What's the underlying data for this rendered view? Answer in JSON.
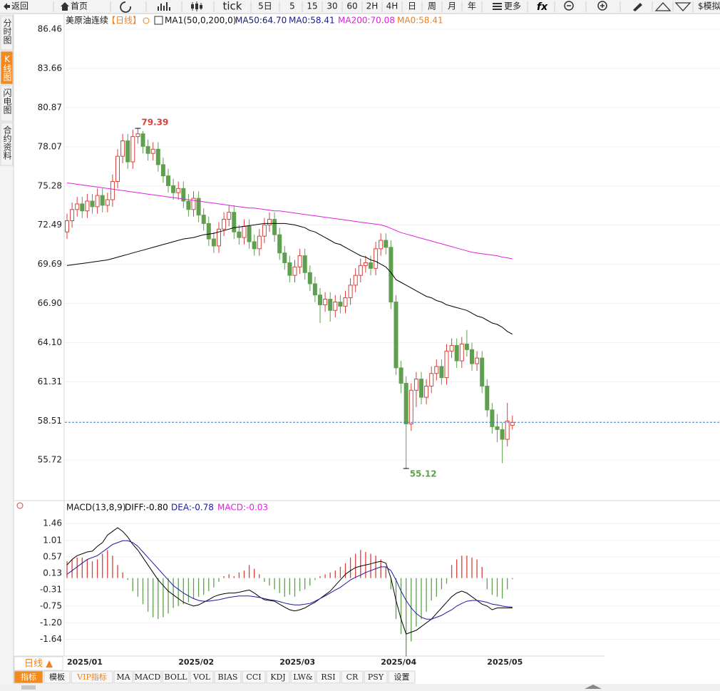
{
  "toolbar": {
    "items": [
      "返回",
      "首页",
      "tick",
      "5日",
      "5",
      "15",
      "30",
      "60",
      "2H",
      "4H",
      "日",
      "周",
      "月",
      "年",
      "更多",
      "$模拟"
    ]
  },
  "sidebar": [
    "分时图",
    "K线图",
    "闪电图",
    "合约资料"
  ],
  "bottom_bar": {
    "period": "日线 ▲",
    "tabs": [
      "指标",
      "模板",
      "VIP指标",
      "MA",
      "MACD",
      "BOLL",
      "VOL",
      "BIAS",
      "CCI",
      "KDJ",
      "LW&",
      "RSI",
      "CR",
      "PSY",
      "设置"
    ]
  },
  "chart_data": [
    {
      "type": "candlestick",
      "title": "美原油连续",
      "period": "【日线】",
      "indicator": "MA1(50,0,200,0)",
      "categories": [
        "2025/01",
        null,
        null,
        null,
        null,
        null,
        null,
        null,
        null,
        null,
        null,
        null,
        null,
        null,
        null,
        null,
        null,
        null,
        null,
        null,
        null,
        null,
        "2025/02",
        null,
        null,
        null,
        null,
        null,
        null,
        null,
        null,
        null,
        null,
        null,
        null,
        null,
        null,
        null,
        null,
        null,
        null,
        null,
        "2025/03",
        null,
        null,
        null,
        null,
        null,
        null,
        null,
        null,
        null,
        null,
        null,
        null,
        null,
        null,
        null,
        null,
        null,
        null,
        null,
        "2025/04",
        null,
        null,
        null,
        null,
        null,
        null,
        null,
        null,
        null,
        null,
        null,
        null,
        null,
        null,
        null,
        null,
        null,
        null,
        null,
        null,
        "2025/05",
        null,
        null,
        null,
        null,
        null
      ],
      "open": [
        72.0,
        72.8,
        73.6,
        74.0,
        73.5,
        74.2,
        73.8,
        74.6,
        73.9,
        74.3,
        75.6,
        77.4,
        78.5,
        77.0,
        78.8,
        79.0,
        78.1,
        77.6,
        77.9,
        76.8,
        76.0,
        75.3,
        74.8,
        75.1,
        74.2,
        73.6,
        74.4,
        73.2,
        72.6,
        71.5,
        71.0,
        72.2,
        72.9,
        73.4,
        72.0,
        71.6,
        72.4,
        71.3,
        70.8,
        71.7,
        72.5,
        72.9,
        71.8,
        70.5,
        69.8,
        68.9,
        69.5,
        70.3,
        69.1,
        68.3,
        67.5,
        66.8,
        67.2,
        66.4,
        67.0,
        66.7,
        67.3,
        68.2,
        68.9,
        69.6,
        69.8,
        69.4,
        70.8,
        71.4,
        70.9,
        67.0,
        62.3,
        61.2,
        58.3,
        60.7,
        61.5,
        60.2,
        61.0,
        61.9,
        62.4,
        61.6,
        63.5,
        63.9,
        62.8,
        64.0,
        63.6,
        62.6,
        63.0,
        61.0,
        59.3,
        58.1,
        57.9,
        57.2,
        58.2
      ],
      "high": [
        73.3,
        74.1,
        74.5,
        74.5,
        74.7,
        74.7,
        75.1,
        75.1,
        74.8,
        76.1,
        77.9,
        79.0,
        79.0,
        79.3,
        79.39,
        79.2,
        78.6,
        78.4,
        78.4,
        77.3,
        76.5,
        75.8,
        75.6,
        75.6,
        74.7,
        74.9,
        74.9,
        73.7,
        73.1,
        72.0,
        72.7,
        73.4,
        73.9,
        73.9,
        72.5,
        72.9,
        72.9,
        71.8,
        72.2,
        73.0,
        73.4,
        73.4,
        72.3,
        71.0,
        70.3,
        70.0,
        70.8,
        70.8,
        69.6,
        68.8,
        68.0,
        67.7,
        67.7,
        67.5,
        67.5,
        67.8,
        68.7,
        69.4,
        70.1,
        70.3,
        70.3,
        71.3,
        71.9,
        71.9,
        71.4,
        67.5,
        62.8,
        61.7,
        61.2,
        62.0,
        62.0,
        61.5,
        62.4,
        62.9,
        62.9,
        64.0,
        64.4,
        64.4,
        64.5,
        65.0,
        64.1,
        63.5,
        63.5,
        61.5,
        59.8,
        59.0,
        58.4,
        59.8,
        58.9
      ],
      "low": [
        71.5,
        72.3,
        73.1,
        73.0,
        73.0,
        73.3,
        73.3,
        73.4,
        73.4,
        73.8,
        75.1,
        76.9,
        76.5,
        76.5,
        78.3,
        77.6,
        77.1,
        77.1,
        76.3,
        75.5,
        74.8,
        74.3,
        74.3,
        73.7,
        73.1,
        73.1,
        72.7,
        72.1,
        71.0,
        70.5,
        70.5,
        71.7,
        72.4,
        71.5,
        71.1,
        71.1,
        70.8,
        70.3,
        70.3,
        71.2,
        72.0,
        71.3,
        70.0,
        69.3,
        68.4,
        68.4,
        69.0,
        68.6,
        67.8,
        67.0,
        65.5,
        66.3,
        65.6,
        65.9,
        66.2,
        66.2,
        66.8,
        67.7,
        68.4,
        69.1,
        68.9,
        68.9,
        70.3,
        70.4,
        66.5,
        61.8,
        60.5,
        55.12,
        57.8,
        59.5,
        59.7,
        59.7,
        60.5,
        61.4,
        61.1,
        61.1,
        63.0,
        62.3,
        62.3,
        63.1,
        62.1,
        62.1,
        60.5,
        58.8,
        57.6,
        57.0,
        55.5,
        56.7,
        57.9
      ],
      "close": [
        72.8,
        73.6,
        74.0,
        73.5,
        74.2,
        73.8,
        74.6,
        73.9,
        74.3,
        75.6,
        77.4,
        78.5,
        77.0,
        78.8,
        79.0,
        78.1,
        77.6,
        77.9,
        76.8,
        76.0,
        75.3,
        74.8,
        75.1,
        74.2,
        73.6,
        74.4,
        73.2,
        72.6,
        71.5,
        71.0,
        72.2,
        72.9,
        73.4,
        72.0,
        71.6,
        72.4,
        71.3,
        70.8,
        71.7,
        72.5,
        72.9,
        71.8,
        70.5,
        69.8,
        68.9,
        69.5,
        70.3,
        69.1,
        68.3,
        67.5,
        66.8,
        67.2,
        66.4,
        67.0,
        66.7,
        67.3,
        68.2,
        68.9,
        69.6,
        69.8,
        69.4,
        70.8,
        71.4,
        70.9,
        67.0,
        62.3,
        61.2,
        58.3,
        60.7,
        61.5,
        60.2,
        61.0,
        61.9,
        62.4,
        61.6,
        63.5,
        63.9,
        62.8,
        64.0,
        63.6,
        62.6,
        63.0,
        61.0,
        59.3,
        58.1,
        57.9,
        57.2,
        58.5,
        58.41
      ],
      "up_color": "#d9403a",
      "down_color": "#5fa04e",
      "last_line_color": "#3a78c8",
      "series": [
        {
          "name": "MA50:64.70",
          "color": "#000000",
          "label_color": "#1a1a70",
          "values": [
            69.6,
            69.65,
            69.7,
            69.75,
            69.8,
            69.85,
            69.9,
            69.95,
            70.0,
            70.1,
            70.2,
            70.3,
            70.4,
            70.5,
            70.6,
            70.7,
            70.8,
            70.9,
            71.0,
            71.1,
            71.2,
            71.3,
            71.4,
            71.5,
            71.55,
            71.6,
            71.7,
            71.8,
            71.85,
            71.9,
            72.0,
            72.1,
            72.2,
            72.3,
            72.35,
            72.4,
            72.45,
            72.5,
            72.55,
            72.6,
            72.6,
            72.6,
            72.6,
            72.6,
            72.55,
            72.5,
            72.4,
            72.3,
            72.1,
            72.0,
            71.8,
            71.6,
            71.4,
            71.2,
            71.1,
            70.9,
            70.7,
            70.5,
            70.3,
            70.2,
            70.0,
            69.9,
            69.7,
            69.5,
            69.1,
            68.6,
            68.4,
            68.2,
            68.0,
            67.8,
            67.6,
            67.4,
            67.3,
            67.1,
            67.0,
            66.8,
            66.7,
            66.6,
            66.5,
            66.4,
            66.2,
            66.0,
            65.9,
            65.7,
            65.5,
            65.4,
            65.2,
            64.9,
            64.7
          ]
        },
        {
          "name": "MA200:70.08",
          "color": "#e020e0",
          "label_color": "#e020e0",
          "values": [
            75.5,
            75.45,
            75.4,
            75.35,
            75.3,
            75.25,
            75.2,
            75.15,
            75.1,
            75.05,
            75.0,
            74.95,
            74.9,
            74.85,
            74.8,
            74.75,
            74.7,
            74.65,
            74.6,
            74.55,
            74.5,
            74.45,
            74.4,
            74.35,
            74.3,
            74.25,
            74.2,
            74.15,
            74.1,
            74.05,
            74.0,
            73.95,
            73.9,
            73.85,
            73.8,
            73.75,
            73.7,
            73.7,
            73.65,
            73.6,
            73.55,
            73.5,
            73.5,
            73.45,
            73.4,
            73.35,
            73.3,
            73.25,
            73.2,
            73.15,
            73.1,
            73.05,
            73.0,
            72.95,
            72.9,
            72.85,
            72.8,
            72.75,
            72.7,
            72.65,
            72.6,
            72.55,
            72.5,
            72.4,
            72.25,
            72.1,
            71.95,
            71.85,
            71.75,
            71.65,
            71.55,
            71.45,
            71.35,
            71.25,
            71.15,
            71.05,
            70.95,
            70.85,
            70.75,
            70.65,
            70.55,
            70.5,
            70.45,
            70.4,
            70.35,
            70.3,
            70.2,
            70.15,
            70.08
          ]
        }
      ],
      "legend_extra": [
        {
          "name": "MA0:58.41",
          "color": "#1a1aa0"
        },
        {
          "name": "MA0:58.41",
          "color": "#f08020"
        }
      ],
      "ylim": [
        52.93,
        87.43
      ],
      "yticks": [
        86.46,
        83.66,
        80.87,
        78.07,
        75.28,
        72.49,
        69.69,
        {
          "value": 66.9,
          "label": "66.90"
        },
        {
          "value": 64.1,
          "label": "64.10"
        },
        61.31,
        58.51,
        55.72
      ],
      "grid": true
    },
    {
      "type": "macd",
      "title": "MACD(13,8,9)",
      "series": [
        {
          "name": "DIFF:-0.80",
          "color": "#000000",
          "label_color": "#000000",
          "values": [
            0.35,
            0.5,
            0.6,
            0.65,
            0.7,
            0.72,
            0.85,
            0.95,
            1.15,
            1.25,
            1.35,
            1.25,
            1.1,
            0.9,
            0.75,
            0.55,
            0.35,
            0.15,
            -0.05,
            -0.2,
            -0.35,
            -0.45,
            -0.55,
            -0.65,
            -0.7,
            -0.75,
            -0.72,
            -0.65,
            -0.58,
            -0.5,
            -0.45,
            -0.42,
            -0.4,
            -0.4,
            -0.38,
            -0.35,
            -0.32,
            -0.4,
            -0.5,
            -0.58,
            -0.6,
            -0.62,
            -0.7,
            -0.78,
            -0.85,
            -0.88,
            -0.85,
            -0.8,
            -0.72,
            -0.65,
            -0.55,
            -0.45,
            -0.35,
            -0.2,
            -0.05,
            0.1,
            0.2,
            0.28,
            0.32,
            0.35,
            0.38,
            0.42,
            0.45,
            0.4,
            0.0,
            -0.6,
            -1.1,
            -1.5,
            -1.45,
            -1.4,
            -1.3,
            -1.2,
            -1.1,
            -0.95,
            -0.8,
            -0.65,
            -0.5,
            -0.4,
            -0.35,
            -0.4,
            -0.5,
            -0.6,
            -0.7,
            -0.75,
            -0.85,
            -0.8,
            -0.8,
            -0.8,
            -0.8
          ]
        },
        {
          "name": "DEA:-0.78",
          "color": "#1a1aa0",
          "label_color": "#1a1aa0",
          "values": [
            0.1,
            0.2,
            0.3,
            0.4,
            0.5,
            0.55,
            0.6,
            0.7,
            0.8,
            0.9,
            0.95,
            1.0,
            1.0,
            0.95,
            0.85,
            0.7,
            0.55,
            0.4,
            0.25,
            0.1,
            -0.05,
            -0.2,
            -0.3,
            -0.4,
            -0.48,
            -0.55,
            -0.6,
            -0.62,
            -0.62,
            -0.6,
            -0.58,
            -0.55,
            -0.52,
            -0.5,
            -0.48,
            -0.48,
            -0.48,
            -0.5,
            -0.52,
            -0.55,
            -0.58,
            -0.6,
            -0.63,
            -0.67,
            -0.7,
            -0.72,
            -0.72,
            -0.7,
            -0.68,
            -0.62,
            -0.55,
            -0.48,
            -0.4,
            -0.32,
            -0.25,
            -0.15,
            -0.05,
            0.02,
            0.08,
            0.15,
            0.2,
            0.25,
            0.3,
            0.3,
            0.2,
            -0.05,
            -0.35,
            -0.6,
            -0.8,
            -0.95,
            -1.05,
            -1.1,
            -1.1,
            -1.05,
            -1.0,
            -0.92,
            -0.85,
            -0.75,
            -0.68,
            -0.62,
            -0.6,
            -0.6,
            -0.62,
            -0.65,
            -0.7,
            -0.72,
            -0.75,
            -0.77,
            -0.78
          ]
        }
      ],
      "histogram": {
        "name": "MACD:-0.03",
        "label_color": "#e020e0",
        "up_color": "#d9403a",
        "down_color": "#5fa04e",
        "values": [
          0.45,
          0.5,
          0.55,
          0.55,
          0.5,
          0.45,
          0.5,
          0.65,
          0.75,
          0.6,
          0.35,
          0.15,
          -0.05,
          -0.35,
          -0.5,
          -0.7,
          -0.9,
          -1.05,
          -1.1,
          -1.05,
          -0.95,
          -0.8,
          -0.75,
          -0.7,
          -0.65,
          -0.55,
          -0.5,
          -0.45,
          -0.35,
          -0.25,
          -0.1,
          0.05,
          0.1,
          0.05,
          0.15,
          0.2,
          0.35,
          0.25,
          0.1,
          -0.1,
          -0.2,
          -0.3,
          -0.4,
          -0.5,
          -0.45,
          -0.5,
          -0.35,
          -0.3,
          -0.2,
          -0.05,
          0.05,
          0.1,
          0.15,
          0.2,
          0.3,
          0.4,
          0.55,
          0.65,
          0.75,
          0.7,
          0.65,
          0.6,
          0.5,
          0.3,
          -0.3,
          -1.1,
          -1.5,
          -2.1,
          -1.7,
          -1.3,
          -1.1,
          -0.9,
          -0.6,
          -0.5,
          -0.3,
          -0.15,
          0.35,
          0.5,
          0.6,
          0.6,
          0.55,
          0.5,
          0.3,
          -0.3,
          -0.45,
          -0.5,
          -0.55,
          -0.3,
          -0.03
        ]
      },
      "ylim": [
        -2.09,
        1.77
      ],
      "yticks": [
        1.46,
        1.01,
        0.57,
        0.13,
        -0.31,
        -0.75,
        {
          "value": -1.2,
          "label": "-1.20"
        },
        -1.64
      ],
      "grid": true
    }
  ]
}
